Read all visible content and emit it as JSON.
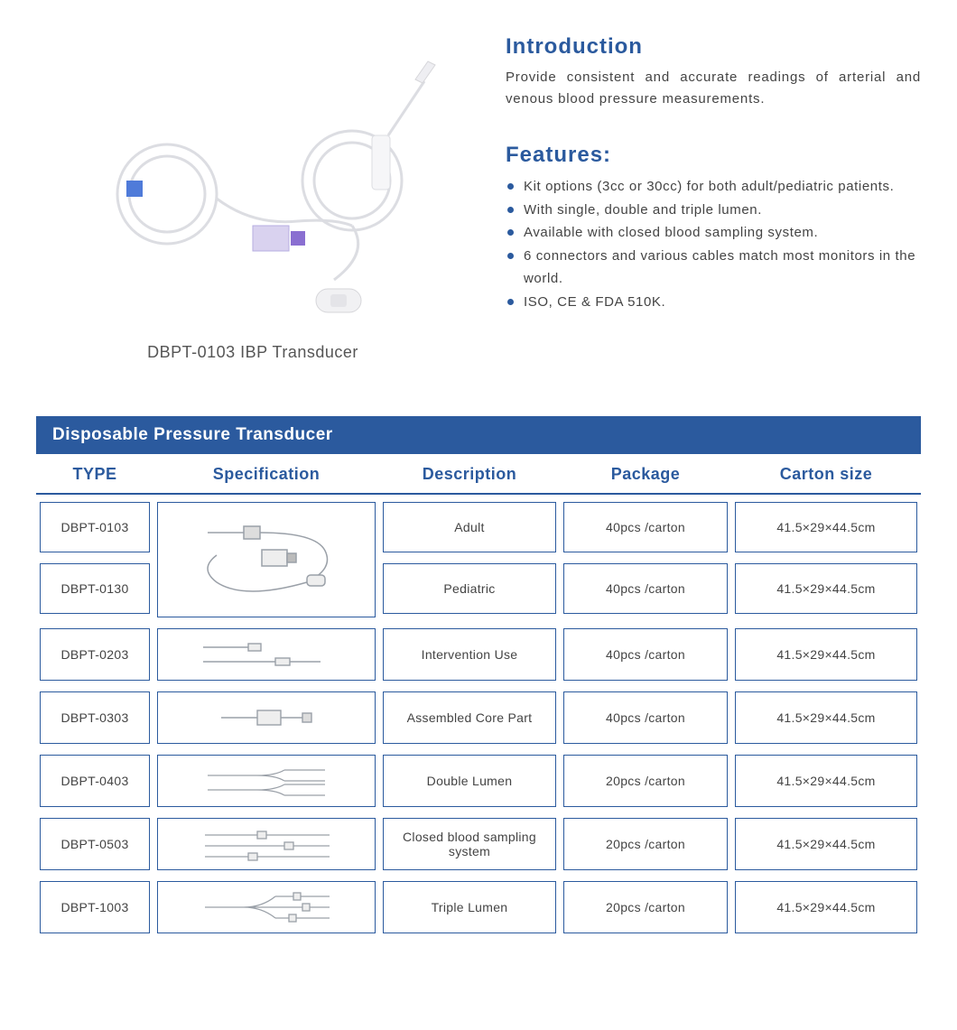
{
  "colors": {
    "primary_blue": "#2b5a9e",
    "bar_blue": "#2b5a9e",
    "border_blue": "#2b5a9e",
    "text_dark": "#444444",
    "bullet": "#2b5a9e"
  },
  "product": {
    "caption": "DBPT-0103 IBP Transducer"
  },
  "intro": {
    "title": "Introduction",
    "body": "Provide consistent and accurate readings of arterial and venous blood pressure measurements."
  },
  "features": {
    "title": "Features:",
    "items": [
      "Kit options (3cc or 30cc) for both adult/pediatric patients.",
      "With single, double and triple lumen.",
      "Available with closed blood sampling system.",
      "6 connectors and various cables match most monitors in the world.",
      "ISO, CE & FDA 510K."
    ]
  },
  "table": {
    "title": "Disposable Pressure Transducer",
    "headers": {
      "type": "TYPE",
      "spec": "Specification",
      "desc": "Description",
      "pkg": "Package",
      "carton": "Carton  size"
    },
    "rows": [
      {
        "type": "DBPT-0103",
        "desc": "Adult",
        "pkg": "40pcs /carton",
        "carton": "41.5×29×44.5cm",
        "merged_spec_with_next": true
      },
      {
        "type": "DBPT-0130",
        "desc": "Pediatric",
        "pkg": "40pcs /carton",
        "carton": "41.5×29×44.5cm",
        "merged_spec_continuation": true
      },
      {
        "type": "DBPT-0203",
        "desc": "Intervention Use",
        "pkg": "40pcs /carton",
        "carton": "41.5×29×44.5cm"
      },
      {
        "type": "DBPT-0303",
        "desc": "Assembled Core Part",
        "pkg": "40pcs /carton",
        "carton": "41.5×29×44.5cm"
      },
      {
        "type": "DBPT-0403",
        "desc": "Double Lumen",
        "pkg": "20pcs /carton",
        "carton": "41.5×29×44.5cm"
      },
      {
        "type": "DBPT-0503",
        "desc": "Closed blood sampling system",
        "pkg": "20pcs /carton",
        "carton": "41.5×29×44.5cm"
      },
      {
        "type": "DBPT-1003",
        "desc": "Triple Lumen",
        "pkg": "20pcs /carton",
        "carton": "41.5×29×44.5cm"
      }
    ]
  }
}
